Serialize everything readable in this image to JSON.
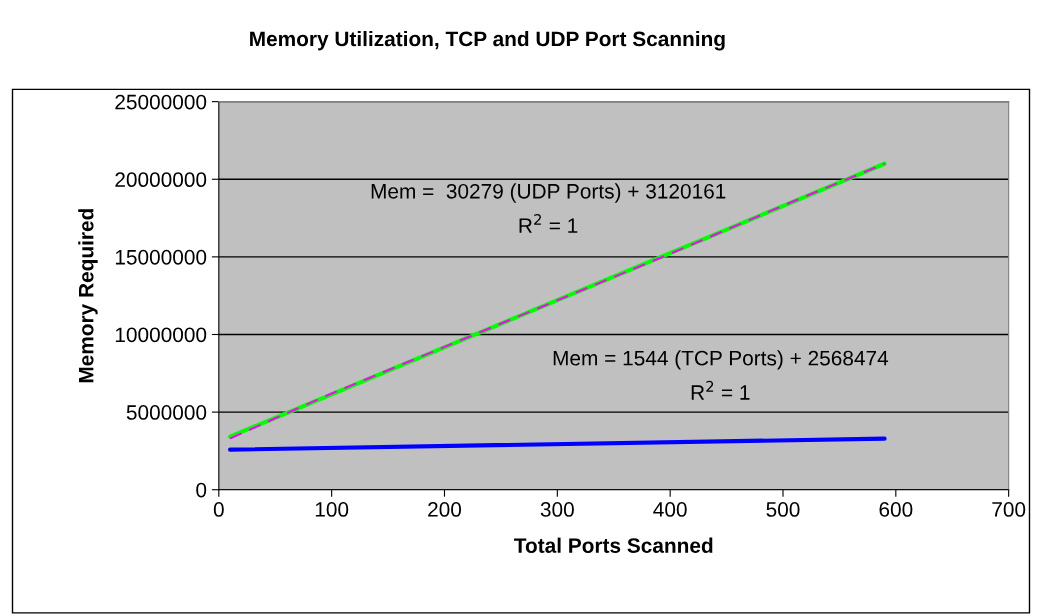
{
  "chart_data": {
    "type": "line",
    "title": "Memory Utilization, TCP and UDP Port Scanning",
    "xlabel": "Total Ports Scanned",
    "ylabel": "Memory Required",
    "xlim": [
      0,
      700
    ],
    "xticks": [
      0,
      100,
      200,
      300,
      400,
      500,
      600,
      700
    ],
    "ylim": [
      0,
      25000000
    ],
    "yticks": [
      0,
      5000000,
      10000000,
      15000000,
      20000000,
      25000000
    ],
    "grid": "y",
    "marker": "none",
    "series": [
      {
        "color": "#ff00ff",
        "line_style": "dashed",
        "x": [
          10,
          50,
          100,
          200,
          300,
          400,
          500,
          590
        ],
        "values": [
          3300000,
          4600000,
          6200000,
          9200000,
          12200000,
          15200000,
          18300000,
          21000000
        ]
      },
      {
        "color": "#00ff00",
        "line_style": "solid",
        "x": [
          10,
          590
        ],
        "values": [
          3420000,
          21000000
        ]
      },
      {
        "color": "#0000ff",
        "line_style": "solid",
        "x": [
          10,
          590
        ],
        "values": [
          2580000,
          3290000
        ]
      }
    ],
    "annotations": [
      "Mem =  30279 (UDP Ports) + 3120161\nR$^{2}$ = 1",
      "Mem = 1544 (TCP Ports) + 2568474\nR$^{2}$ = 1"
    ]
  }
}
